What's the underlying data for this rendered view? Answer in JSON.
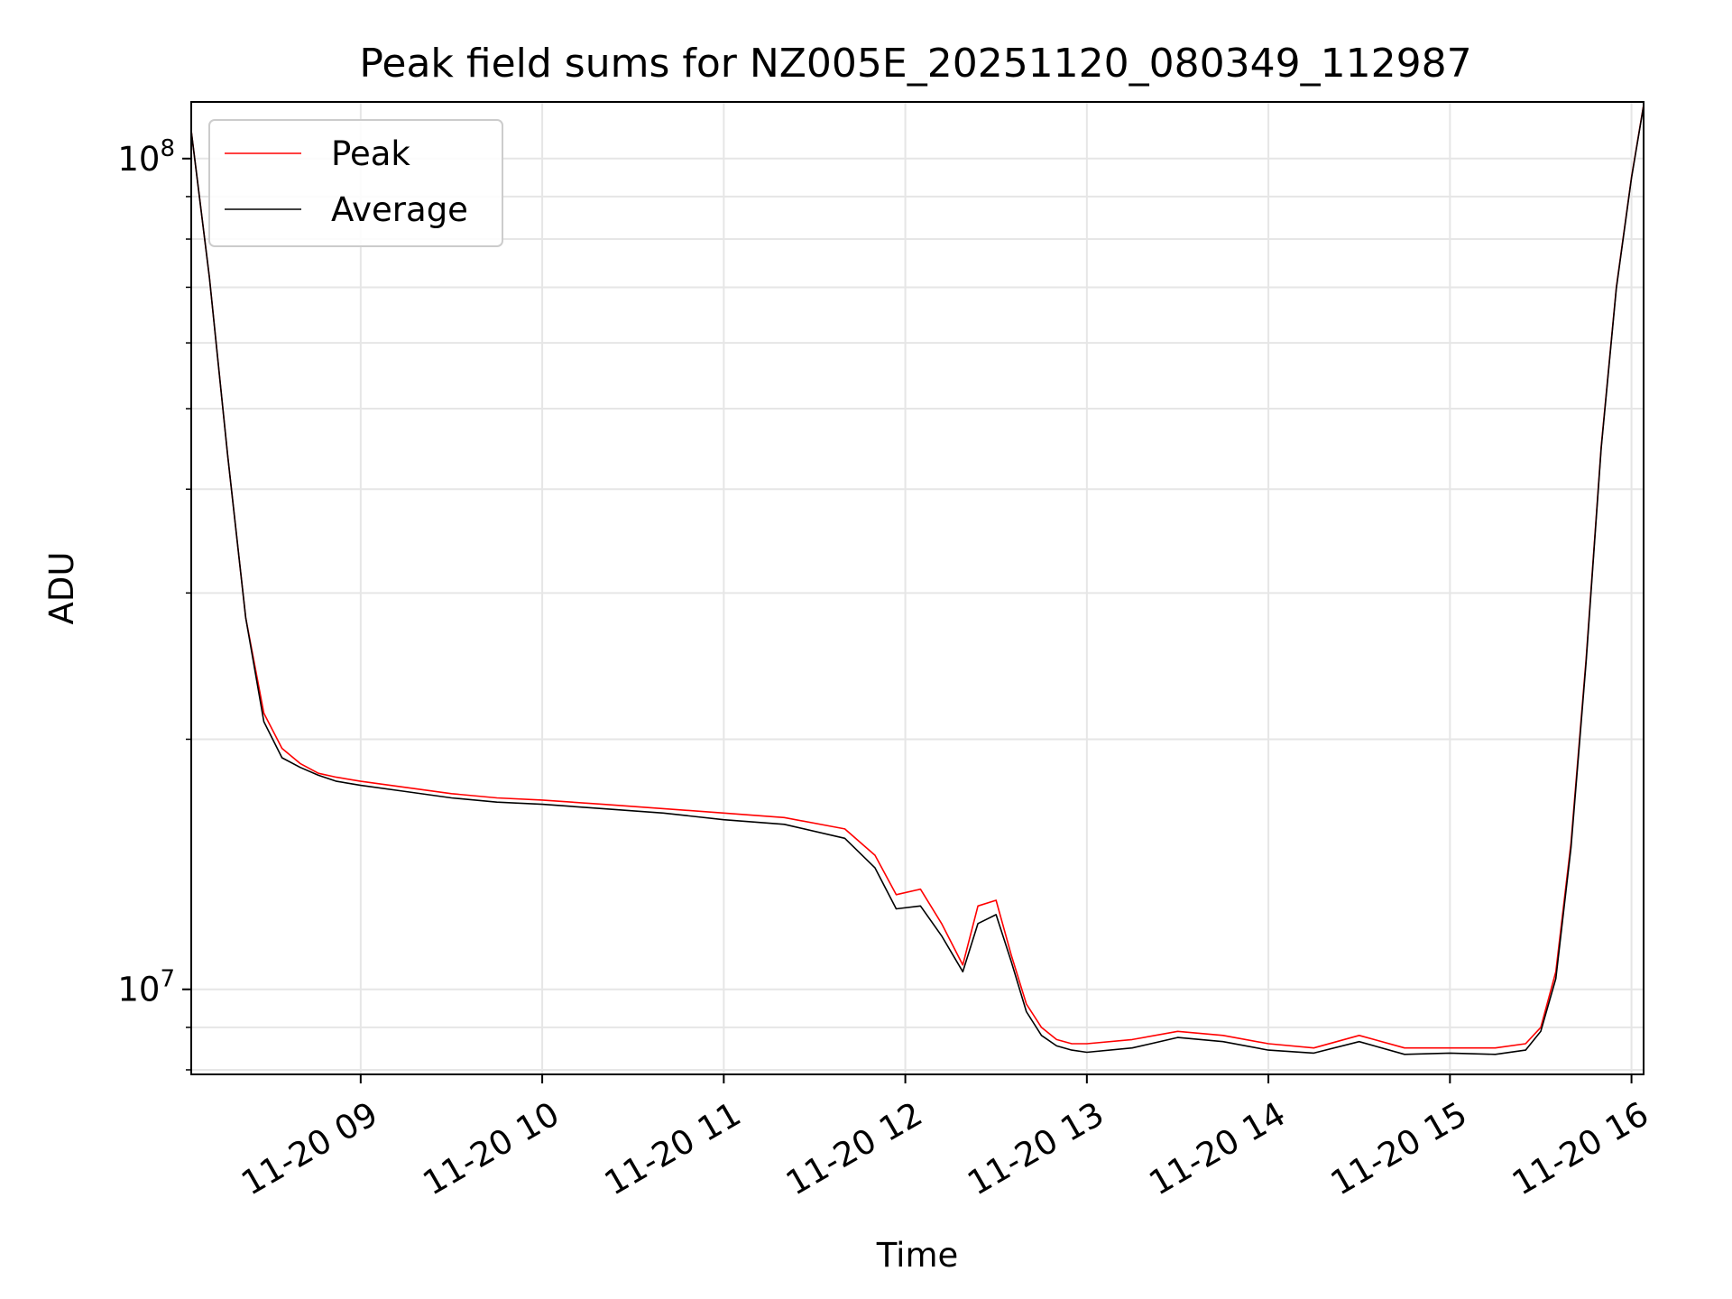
{
  "chart_data": {
    "type": "line",
    "title": "Peak field sums for NZ005E_20251120_080349_112987",
    "xlabel": "Time",
    "ylabel": "ADU",
    "yscale": "log",
    "grid": true,
    "legend_position": "top-left",
    "xlim": [
      "2025-11-20 08:04",
      "2025-11-20 16:04"
    ],
    "ylim": [
      7900000,
      117000000
    ],
    "x_ticks": [
      {
        "value": "2025-11-20 09:00",
        "label": "11-20 09"
      },
      {
        "value": "2025-11-20 10:00",
        "label": "11-20 10"
      },
      {
        "value": "2025-11-20 11:00",
        "label": "11-20 11"
      },
      {
        "value": "2025-11-20 12:00",
        "label": "11-20 12"
      },
      {
        "value": "2025-11-20 13:00",
        "label": "11-20 13"
      },
      {
        "value": "2025-11-20 14:00",
        "label": "11-20 14"
      },
      {
        "value": "2025-11-20 15:00",
        "label": "11-20 15"
      },
      {
        "value": "2025-11-20 16:00",
        "label": "11-20 16"
      }
    ],
    "y_ticks": [
      {
        "value": 10000000,
        "base": "10",
        "exp": "7"
      },
      {
        "value": 100000000,
        "base": "10",
        "exp": "8"
      }
    ],
    "x": [
      "2025-11-20 08:04",
      "2025-11-20 08:10",
      "2025-11-20 08:16",
      "2025-11-20 08:22",
      "2025-11-20 08:28",
      "2025-11-20 08:34",
      "2025-11-20 08:40",
      "2025-11-20 08:46",
      "2025-11-20 08:52",
      "2025-11-20 09:00",
      "2025-11-20 09:15",
      "2025-11-20 09:30",
      "2025-11-20 09:45",
      "2025-11-20 10:00",
      "2025-11-20 10:20",
      "2025-11-20 10:40",
      "2025-11-20 11:00",
      "2025-11-20 11:20",
      "2025-11-20 11:40",
      "2025-11-20 11:50",
      "2025-11-20 11:57",
      "2025-11-20 12:05",
      "2025-11-20 12:12",
      "2025-11-20 12:19",
      "2025-11-20 12:24",
      "2025-11-20 12:30",
      "2025-11-20 12:35",
      "2025-11-20 12:40",
      "2025-11-20 12:45",
      "2025-11-20 12:50",
      "2025-11-20 12:55",
      "2025-11-20 13:00",
      "2025-11-20 13:15",
      "2025-11-20 13:30",
      "2025-11-20 13:45",
      "2025-11-20 14:00",
      "2025-11-20 14:15",
      "2025-11-20 14:30",
      "2025-11-20 14:45",
      "2025-11-20 15:00",
      "2025-11-20 15:15",
      "2025-11-20 15:25",
      "2025-11-20 15:30",
      "2025-11-20 15:35",
      "2025-11-20 15:40",
      "2025-11-20 15:45",
      "2025-11-20 15:50",
      "2025-11-20 15:55",
      "2025-11-20 16:00",
      "2025-11-20 16:04"
    ],
    "series": [
      {
        "name": "Peak",
        "color": "#ff0000",
        "values": [
          108000000,
          72000000,
          44000000,
          28000000,
          21500000,
          19500000,
          18700000,
          18200000,
          18000000,
          17800000,
          17500000,
          17200000,
          17000000,
          16900000,
          16700000,
          16500000,
          16300000,
          16100000,
          15600000,
          14500000,
          13000000,
          13200000,
          12000000,
          10700000,
          12600000,
          12800000,
          11000000,
          9600000,
          9000000,
          8700000,
          8600000,
          8600000,
          8700000,
          8900000,
          8800000,
          8600000,
          8500000,
          8800000,
          8500000,
          8500000,
          8500000,
          8600000,
          9000000,
          10500000,
          15000000,
          25000000,
          45000000,
          70000000,
          95000000,
          116000000
        ]
      },
      {
        "name": "Average",
        "color": "#000000",
        "values": [
          108000000,
          72000000,
          44000000,
          28000000,
          21000000,
          19000000,
          18500000,
          18100000,
          17800000,
          17600000,
          17300000,
          17000000,
          16800000,
          16700000,
          16500000,
          16300000,
          16000000,
          15800000,
          15200000,
          14000000,
          12500000,
          12600000,
          11600000,
          10500000,
          12000000,
          12300000,
          10800000,
          9400000,
          8800000,
          8550000,
          8450000,
          8400000,
          8500000,
          8750000,
          8650000,
          8450000,
          8380000,
          8650000,
          8350000,
          8380000,
          8350000,
          8450000,
          8900000,
          10300000,
          14800000,
          24800000,
          44800000,
          69800000,
          94800000,
          115800000
        ]
      }
    ]
  }
}
